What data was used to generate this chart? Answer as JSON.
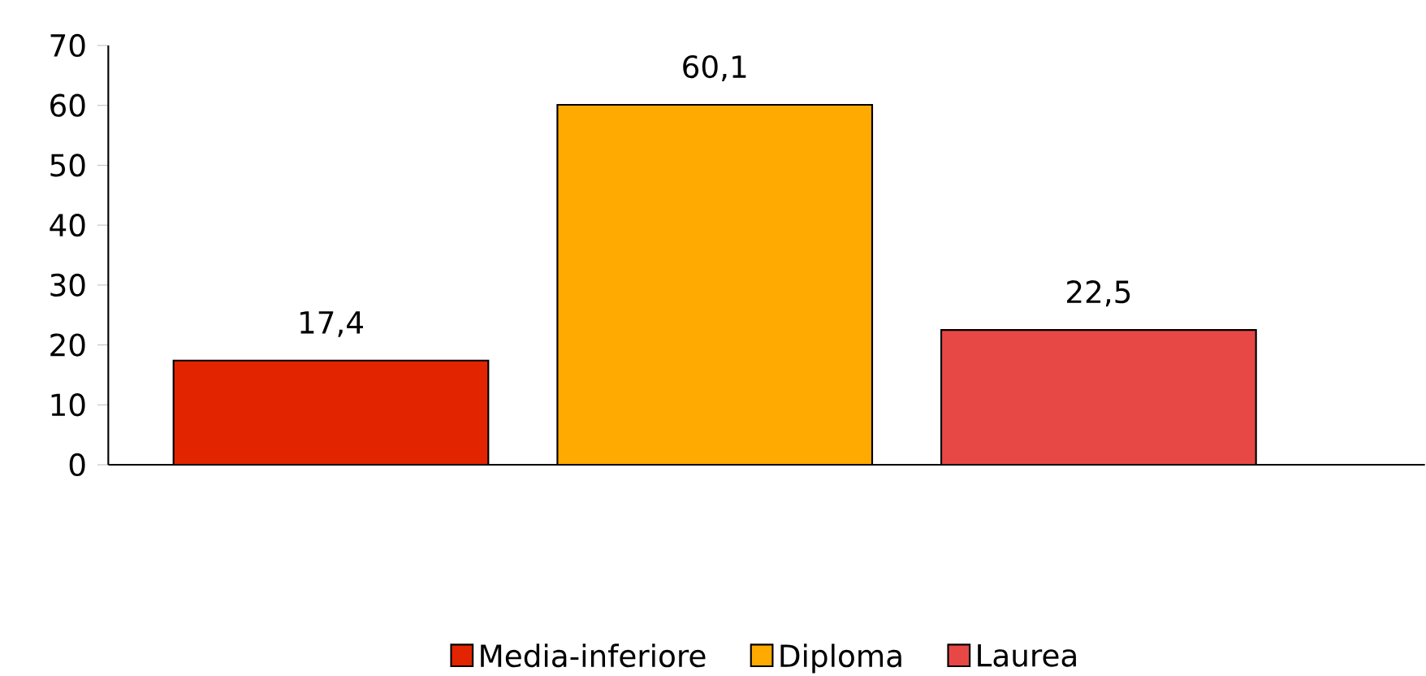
{
  "chart_data": {
    "type": "bar",
    "categories": [
      null,
      null,
      null
    ],
    "series": [
      {
        "name": "Media-inferiore",
        "color": "#e32400",
        "values": [
          17.4,
          null,
          null
        ],
        "value_labels": [
          "17,4",
          null,
          null
        ]
      },
      {
        "name": "Diploma",
        "color": "#ffaa00",
        "values": [
          null,
          60.1,
          null
        ],
        "value_labels": [
          null,
          "60,1",
          null
        ]
      },
      {
        "name": "Laurea",
        "color": "#e84845",
        "values": [
          null,
          null,
          22.5
        ],
        "value_labels": [
          null,
          null,
          "22,5"
        ]
      }
    ],
    "ylim": [
      0,
      70
    ],
    "yticks": [
      0,
      10,
      20,
      30,
      40,
      50,
      60,
      70
    ],
    "grid": false,
    "legend": "bottom"
  }
}
